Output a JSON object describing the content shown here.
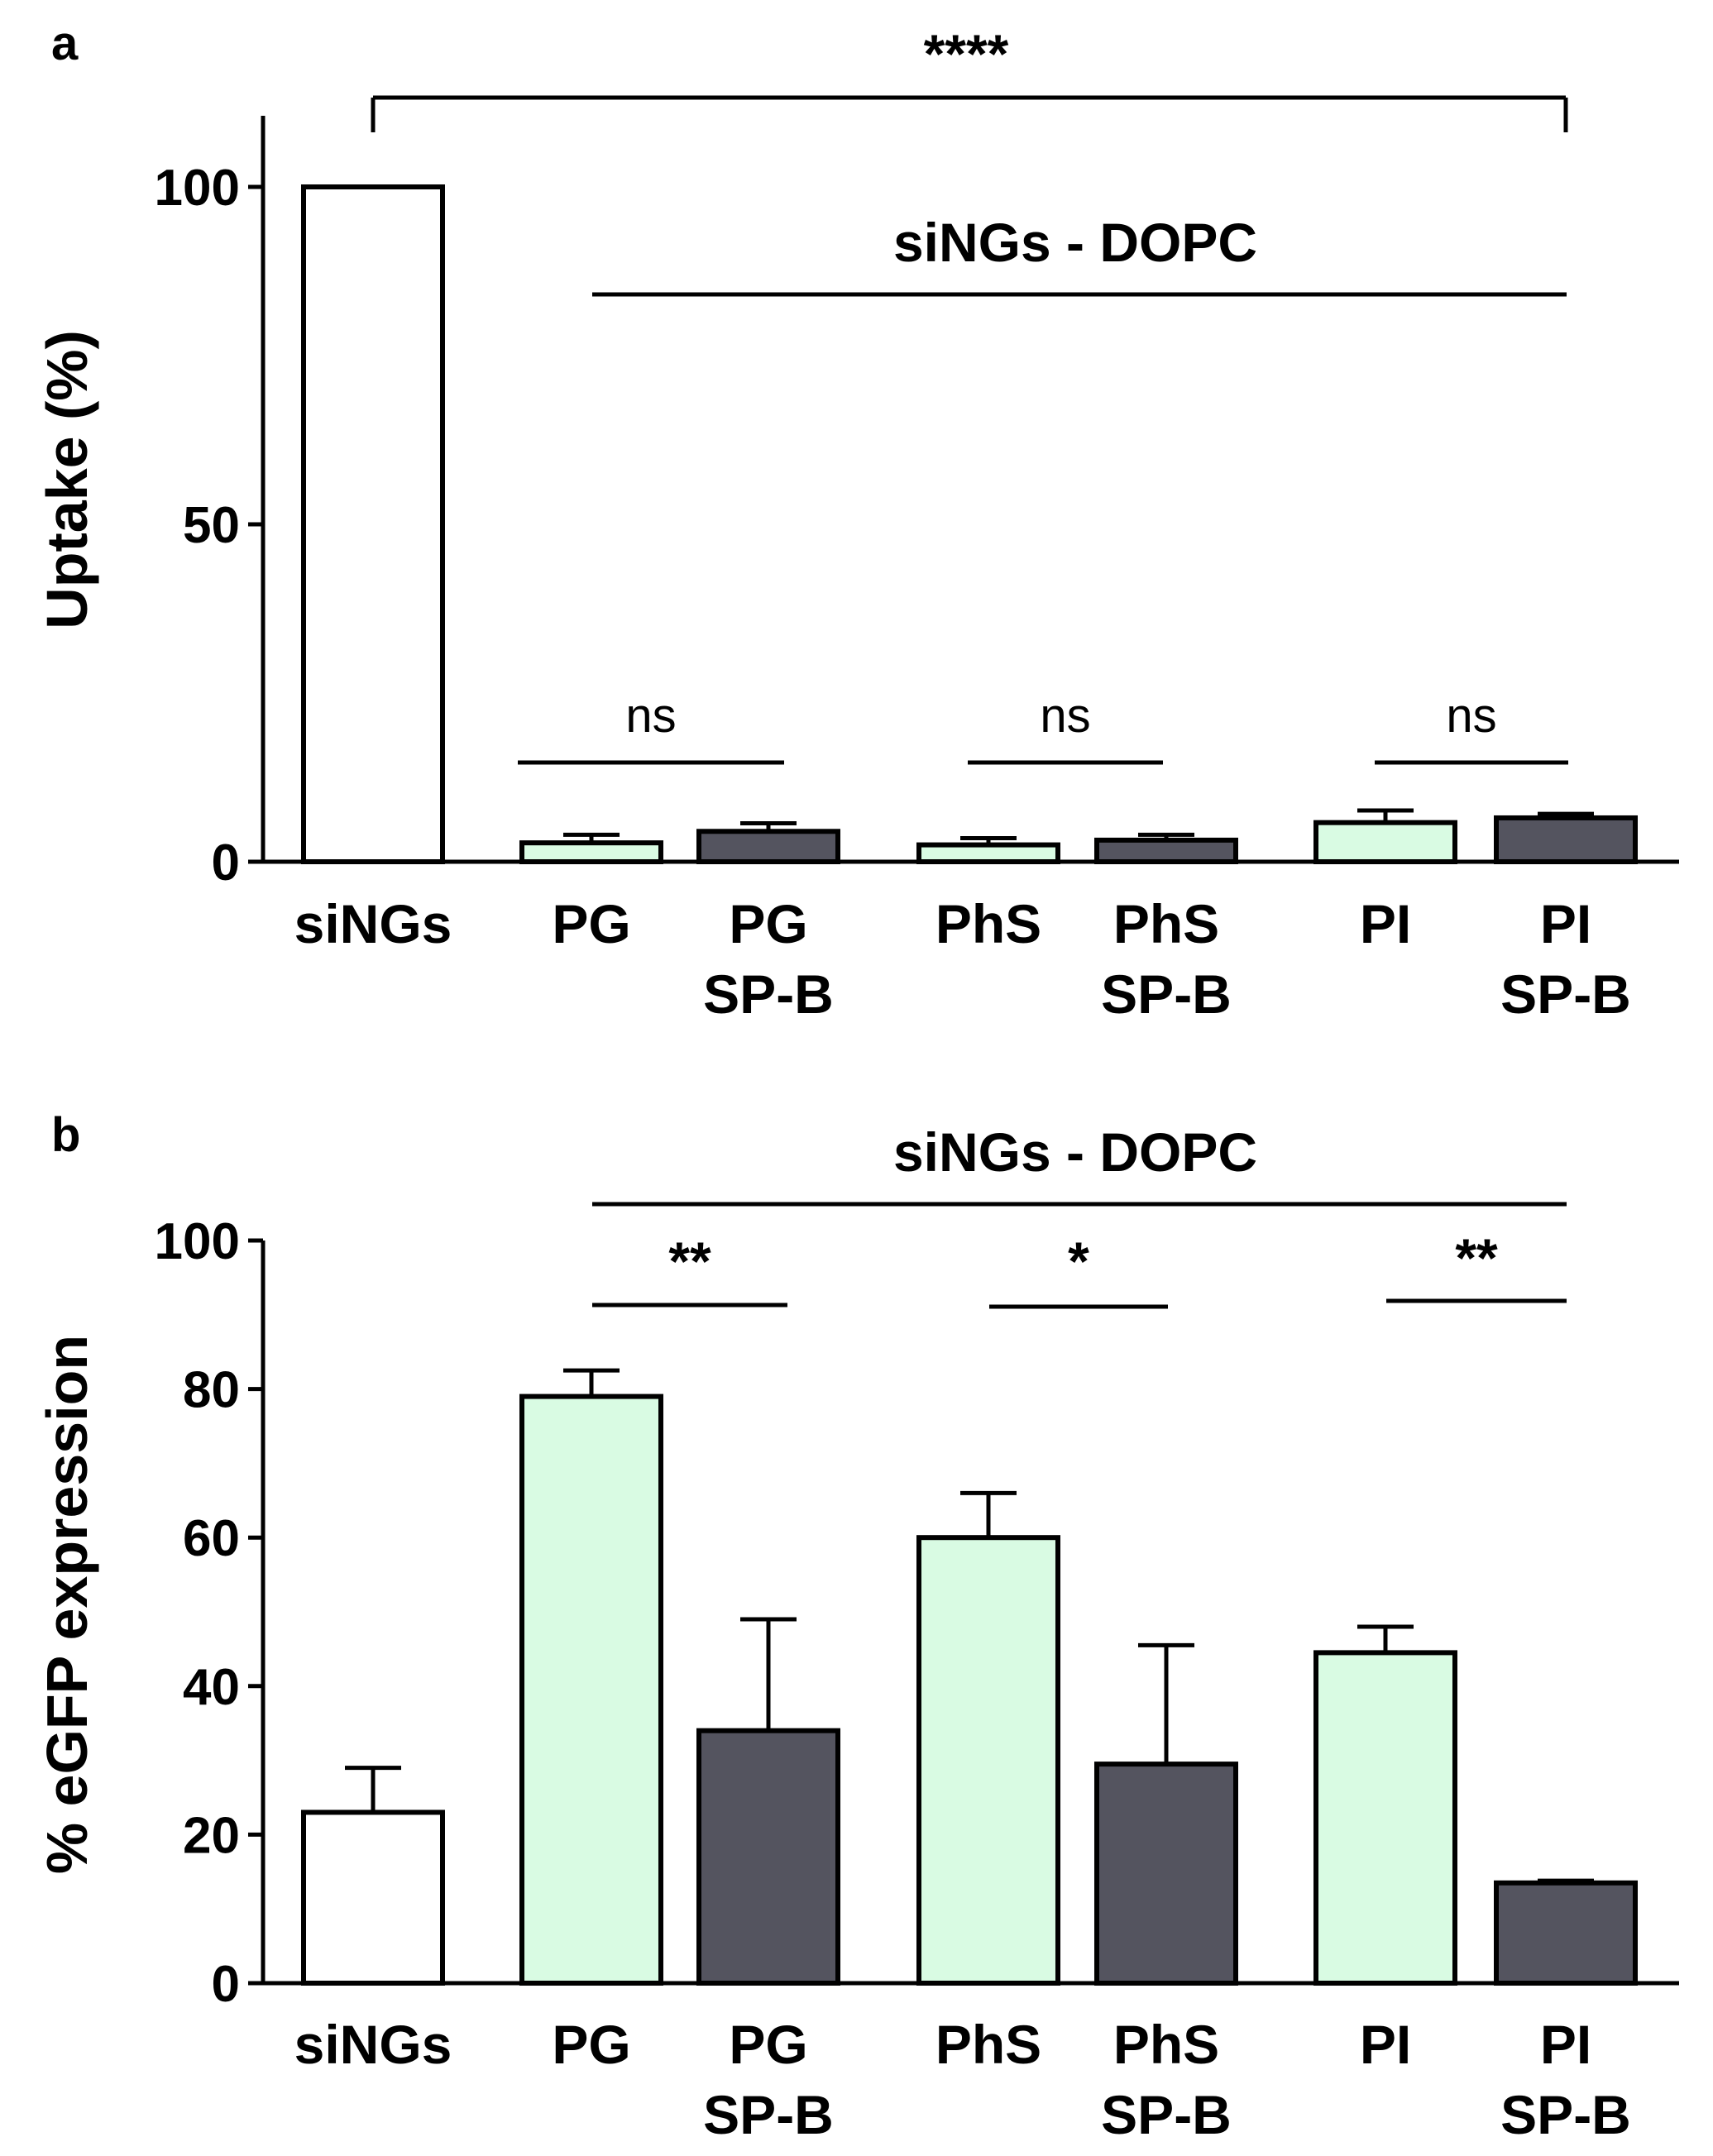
{
  "figure": {
    "panels": [
      {
        "label": "a",
        "ylabel": "Uptake (%)",
        "group_label": "siNGs - DOPC",
        "overall_sig": "****",
        "pair_sigs": [
          "ns",
          "ns",
          "ns"
        ]
      },
      {
        "label": "b",
        "ylabel": "% eGFP expression",
        "group_label": "siNGs - DOPC",
        "overall_sig": "",
        "pair_sigs": [
          "**",
          "*",
          "**"
        ]
      }
    ]
  },
  "colors": {
    "control_fill": "#ffffff",
    "lipid_fill": "#d9fbe3",
    "spb_fill": "#54545f",
    "stroke": "#000000"
  },
  "chart_data": [
    {
      "type": "bar",
      "title": "",
      "xlabel": "",
      "ylabel": "Uptake (%)",
      "ylim": [
        0,
        110
      ],
      "yticks": [
        0,
        50,
        100
      ],
      "categories": [
        [
          "siNGs"
        ],
        [
          "PG"
        ],
        [
          "PG",
          "SP-B"
        ],
        [
          "PhS"
        ],
        [
          "PhS",
          "SP-B"
        ],
        [
          "PI"
        ],
        [
          "PI",
          "SP-B"
        ]
      ],
      "values": [
        100,
        2.8,
        4.5,
        2.5,
        3.2,
        5.8,
        6.5
      ],
      "errors": [
        0,
        1.2,
        1.2,
        1.0,
        0.8,
        1.8,
        0.6
      ],
      "fill_kind": [
        "control",
        "lipid",
        "spb",
        "lipid",
        "spb",
        "lipid",
        "spb"
      ],
      "grid": false,
      "annotations": [
        {
          "from": 0,
          "to": 6,
          "label": "****",
          "type": "overall"
        },
        {
          "from": 1,
          "to": 6,
          "label": "siNGs - DOPC",
          "type": "group"
        },
        {
          "from": 1,
          "to": 2,
          "label": "ns",
          "type": "pair"
        },
        {
          "from": 3,
          "to": 4,
          "label": "ns",
          "type": "pair"
        },
        {
          "from": 5,
          "to": 6,
          "label": "ns",
          "type": "pair"
        }
      ]
    },
    {
      "type": "bar",
      "title": "",
      "xlabel": "",
      "ylabel": "% eGFP expression",
      "ylim": [
        0,
        100
      ],
      "yticks": [
        0,
        20,
        40,
        60,
        80,
        100
      ],
      "categories": [
        [
          "siNGs"
        ],
        [
          "PG"
        ],
        [
          "PG",
          "SP-B"
        ],
        [
          "PhS"
        ],
        [
          "PhS",
          "SP-B"
        ],
        [
          "PI"
        ],
        [
          "PI",
          "SP-B"
        ]
      ],
      "values": [
        23,
        79,
        34,
        60,
        29.5,
        44.5,
        13.5
      ],
      "errors": [
        6,
        3.5,
        15,
        6,
        16,
        3.5,
        0.3
      ],
      "fill_kind": [
        "control",
        "lipid",
        "spb",
        "lipid",
        "spb",
        "lipid",
        "spb"
      ],
      "grid": false,
      "annotations": [
        {
          "from": 1,
          "to": 6,
          "label": "siNGs - DOPC",
          "type": "group"
        },
        {
          "from": 1,
          "to": 2,
          "label": "**",
          "type": "pair"
        },
        {
          "from": 3,
          "to": 4,
          "label": "*",
          "type": "pair"
        },
        {
          "from": 5,
          "to": 6,
          "label": "**",
          "type": "pair"
        }
      ]
    }
  ]
}
